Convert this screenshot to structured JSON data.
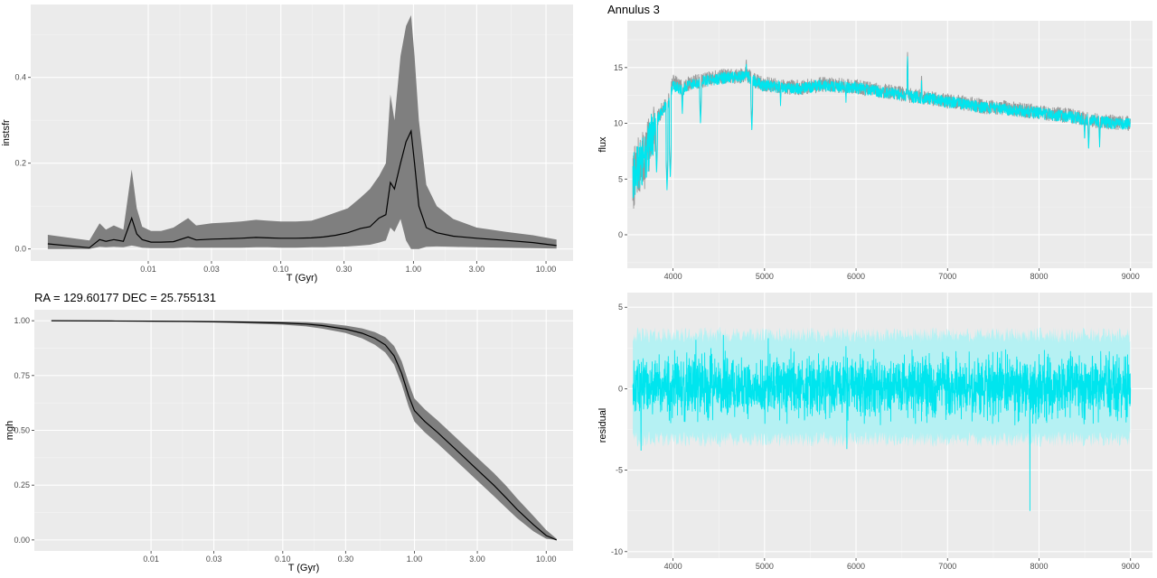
{
  "chart_data": [
    {
      "id": "sfh",
      "type": "line",
      "title": "",
      "xlabel": "T (Gyr)",
      "ylabel": "instsfr",
      "xscale": "log",
      "xlim": [
        0.0013,
        16
      ],
      "ylim": [
        -0.028,
        0.57
      ],
      "xticks": [
        0.01,
        0.03,
        0.1,
        0.3,
        1.0,
        3.0,
        10.0
      ],
      "xtick_labels": [
        "0.01",
        "0.03",
        "0.10",
        "0.30",
        "1.00",
        "3.00",
        "10.00"
      ],
      "yticks": [
        0.0,
        0.2,
        0.4
      ],
      "ytick_labels": [
        "0.0",
        "0.2",
        "0.4"
      ],
      "series": [
        {
          "line_color": "#000000",
          "band_color": "#7f7f7f",
          "x": [
            0.00175,
            0.0036,
            0.0043,
            0.0048,
            0.0055,
            0.0065,
            0.0075,
            0.0082,
            0.009,
            0.0105,
            0.0125,
            0.0155,
            0.02,
            0.023,
            0.03,
            0.04,
            0.05,
            0.065,
            0.08,
            0.1,
            0.13,
            0.17,
            0.21,
            0.26,
            0.32,
            0.4,
            0.47,
            0.55,
            0.62,
            0.67,
            0.72,
            0.8,
            0.88,
            0.96,
            1.02,
            1.1,
            1.25,
            1.5,
            2.0,
            3.0,
            5.0,
            8.0,
            12.0
          ],
          "y": [
            0.012,
            0.003,
            0.022,
            0.018,
            0.022,
            0.018,
            0.072,
            0.035,
            0.022,
            0.016,
            0.016,
            0.017,
            0.028,
            0.021,
            0.023,
            0.024,
            0.025,
            0.027,
            0.026,
            0.025,
            0.025,
            0.026,
            0.028,
            0.032,
            0.038,
            0.048,
            0.052,
            0.072,
            0.08,
            0.155,
            0.14,
            0.2,
            0.25,
            0.275,
            0.2,
            0.1,
            0.05,
            0.038,
            0.03,
            0.025,
            0.02,
            0.015,
            0.008
          ],
          "lower": [
            0.0,
            0.0,
            0.005,
            0.004,
            0.005,
            0.004,
            0.008,
            0.006,
            0.003,
            0.002,
            0.002,
            0.002,
            0.004,
            0.003,
            0.003,
            0.003,
            0.003,
            0.004,
            0.004,
            0.003,
            0.003,
            0.004,
            0.004,
            0.005,
            0.006,
            0.008,
            0.01,
            0.015,
            0.02,
            0.05,
            0.04,
            0.07,
            0.02,
            0.0,
            0.0,
            0.0,
            0.005,
            0.006,
            0.005,
            0.004,
            0.003,
            0.002,
            0.001
          ],
          "upper": [
            0.033,
            0.02,
            0.06,
            0.045,
            0.055,
            0.045,
            0.185,
            0.095,
            0.052,
            0.042,
            0.042,
            0.05,
            0.072,
            0.055,
            0.06,
            0.062,
            0.064,
            0.068,
            0.066,
            0.064,
            0.064,
            0.066,
            0.075,
            0.085,
            0.095,
            0.12,
            0.14,
            0.17,
            0.2,
            0.36,
            0.3,
            0.45,
            0.52,
            0.545,
            0.45,
            0.3,
            0.15,
            0.1,
            0.07,
            0.05,
            0.04,
            0.032,
            0.022
          ]
        }
      ]
    },
    {
      "id": "spectrum",
      "type": "line",
      "title": "Annulus 3",
      "xlabel": "",
      "ylabel": "flux",
      "xlim": [
        3500,
        9240
      ],
      "ylim": [
        -3,
        19.2
      ],
      "xticks": [
        4000,
        5000,
        6000,
        7000,
        8000,
        9000
      ],
      "xtick_labels": [
        "4000",
        "5000",
        "6000",
        "7000",
        "8000",
        "9000"
      ],
      "yticks": [
        0,
        5,
        10,
        15
      ],
      "ytick_labels": [
        "0",
        "5",
        "10",
        "15"
      ],
      "series": [
        {
          "color": "#999999",
          "x": [
            3560,
            3600,
            3650,
            3700,
            3750,
            3800,
            3850,
            3900,
            3950,
            4000,
            4100,
            4200,
            4300,
            4400,
            4500,
            4600,
            4700,
            4800,
            4900,
            5000,
            5200,
            5400,
            5600,
            5800,
            6000,
            6200,
            6400,
            6600,
            6800,
            7000,
            7200,
            7400,
            7600,
            7800,
            8000,
            8200,
            8400,
            8600,
            8800,
            9000
          ],
          "y": [
            4.5,
            6.0,
            6.2,
            7.0,
            8.5,
            9.8,
            10.8,
            11.5,
            12.0,
            13.8,
            13.2,
            13.7,
            13.8,
            14.0,
            14.2,
            14.2,
            14.2,
            14.4,
            13.8,
            13.5,
            13.3,
            13.2,
            13.5,
            13.4,
            13.3,
            13.0,
            12.8,
            12.5,
            12.3,
            12.0,
            11.8,
            11.5,
            11.4,
            11.2,
            11.0,
            10.8,
            10.6,
            10.3,
            10.1,
            10.0
          ]
        },
        {
          "color": "#00e5ee",
          "x": [
            3560,
            3600,
            3650,
            3700,
            3750,
            3800,
            3850,
            3900,
            3950,
            4000,
            4100,
            4200,
            4300,
            4400,
            4500,
            4600,
            4700,
            4800,
            4900,
            5000,
            5200,
            5400,
            5600,
            5800,
            6000,
            6200,
            6400,
            6600,
            6800,
            7000,
            7200,
            7400,
            7600,
            7800,
            8000,
            8200,
            8400,
            8600,
            8800,
            9000
          ],
          "y": [
            5.2,
            6.0,
            6.3,
            7.0,
            8.4,
            9.7,
            10.7,
            11.4,
            11.9,
            13.4,
            13.0,
            13.5,
            13.7,
            13.9,
            14.0,
            14.1,
            14.1,
            14.2,
            13.7,
            13.4,
            13.2,
            13.1,
            13.4,
            13.3,
            13.2,
            12.9,
            12.7,
            12.4,
            12.2,
            11.9,
            11.7,
            11.4,
            11.3,
            11.1,
            10.9,
            10.7,
            10.5,
            10.2,
            10.0,
            9.9
          ]
        }
      ],
      "absorption_lines": [
        {
          "x": 3820,
          "y": 5.5
        },
        {
          "x": 3934,
          "y": 4.0
        },
        {
          "x": 3970,
          "y": 5.0
        },
        {
          "x": 4101,
          "y": 10.8
        },
        {
          "x": 4300,
          "y": 9.8
        },
        {
          "x": 4861,
          "y": 9.2
        },
        {
          "x": 5175,
          "y": 11.5
        },
        {
          "x": 5890,
          "y": 11.8
        },
        {
          "x": 8498,
          "y": 8.4
        },
        {
          "x": 8542,
          "y": 7.5
        },
        {
          "x": 8662,
          "y": 7.8
        }
      ],
      "emission_lines": [
        {
          "x": 4800,
          "y": 16.0
        },
        {
          "x": 6563,
          "y": 16.4
        },
        {
          "x": 6716,
          "y": 14.6
        }
      ]
    },
    {
      "id": "mgh",
      "type": "line",
      "title": "RA = 129.60177  DEC = 25.755131",
      "xlabel": "T (Gyr)",
      "ylabel": "mgh",
      "xscale": "log",
      "xlim": [
        0.0013,
        16
      ],
      "ylim": [
        -0.05,
        1.05
      ],
      "xticks": [
        0.01,
        0.03,
        0.1,
        0.3,
        1.0,
        3.0,
        10.0
      ],
      "xtick_labels": [
        "0.01",
        "0.03",
        "0.10",
        "0.30",
        "1.00",
        "3.00",
        "10.00"
      ],
      "yticks": [
        0.0,
        0.25,
        0.5,
        0.75,
        1.0
      ],
      "ytick_labels": [
        "0.00",
        "0.25",
        "0.50",
        "0.75",
        "1.00"
      ],
      "series": [
        {
          "line_color": "#000000",
          "band_color": "#7f7f7f",
          "x": [
            0.00175,
            0.005,
            0.01,
            0.02,
            0.03,
            0.05,
            0.1,
            0.15,
            0.2,
            0.3,
            0.4,
            0.5,
            0.6,
            0.7,
            0.8,
            0.9,
            1.0,
            1.2,
            1.5,
            2.0,
            3.0,
            4.0,
            5.0,
            6.0,
            8.0,
            10.0,
            12.0
          ],
          "y": [
            1.0,
            0.999,
            0.998,
            0.997,
            0.996,
            0.994,
            0.99,
            0.985,
            0.978,
            0.962,
            0.943,
            0.92,
            0.89,
            0.84,
            0.76,
            0.66,
            0.59,
            0.54,
            0.49,
            0.42,
            0.32,
            0.25,
            0.19,
            0.14,
            0.07,
            0.02,
            0.0
          ],
          "lower": [
            1.0,
            0.998,
            0.996,
            0.994,
            0.992,
            0.988,
            0.982,
            0.974,
            0.964,
            0.944,
            0.92,
            0.89,
            0.855,
            0.8,
            0.71,
            0.61,
            0.54,
            0.49,
            0.44,
            0.37,
            0.27,
            0.2,
            0.145,
            0.1,
            0.04,
            0.005,
            0.0
          ],
          "upper": [
            1.0,
            1.0,
            0.999,
            0.999,
            0.999,
            0.998,
            0.996,
            0.994,
            0.99,
            0.978,
            0.965,
            0.948,
            0.925,
            0.885,
            0.815,
            0.72,
            0.645,
            0.595,
            0.545,
            0.475,
            0.375,
            0.305,
            0.245,
            0.19,
            0.11,
            0.045,
            0.005
          ]
        }
      ]
    },
    {
      "id": "residual",
      "type": "line",
      "title": "",
      "xlabel": "",
      "ylabel": "residual",
      "xlim": [
        3500,
        9240
      ],
      "ylim": [
        -10.4,
        5.9
      ],
      "xticks": [
        4000,
        5000,
        6000,
        7000,
        8000,
        9000
      ],
      "xtick_labels": [
        "4000",
        "5000",
        "6000",
        "7000",
        "8000",
        "9000"
      ],
      "yticks": [
        -10,
        -5,
        0,
        5
      ],
      "ytick_labels": [
        "-10",
        "-5",
        "0",
        "5"
      ],
      "series": [
        {
          "color": "#00e5ee",
          "band_color": "#b5f1f3",
          "x_range": [
            3560,
            9000
          ],
          "center": 0.1,
          "spread": 1.3,
          "band_halfwidth": 3.2,
          "outliers": [
            {
              "x": 3650,
              "y": -3.8
            },
            {
              "x": 4250,
              "y": 3.0
            },
            {
              "x": 4550,
              "y": 3.3
            },
            {
              "x": 5040,
              "y": 3.1
            },
            {
              "x": 5900,
              "y": -3.7
            },
            {
              "x": 7900,
              "y": -7.5
            }
          ]
        }
      ]
    }
  ]
}
